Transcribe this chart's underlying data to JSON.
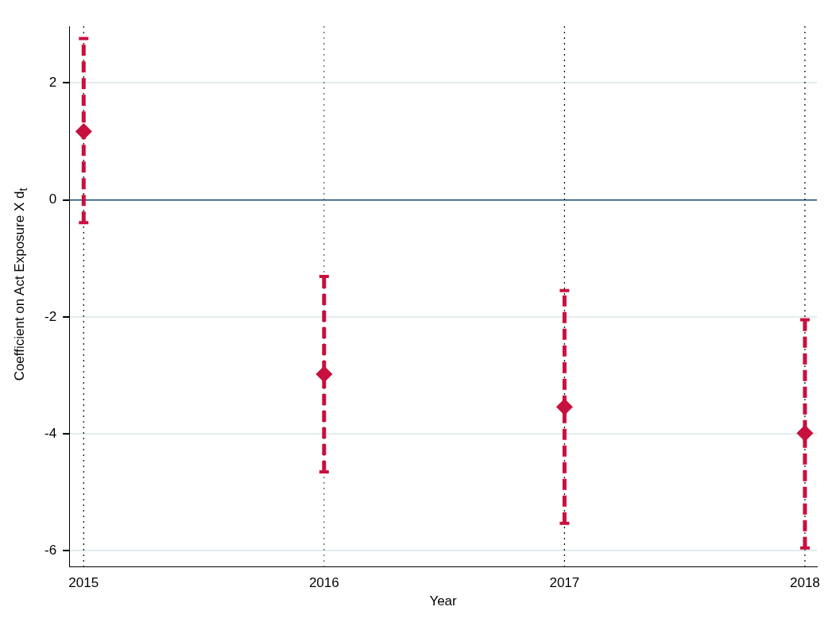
{
  "chart_data": {
    "type": "scatter",
    "xlabel": "Year",
    "ylabel": "Coefficient on Act Exposure X d$_{t}$",
    "x": [
      2015,
      2016,
      2017,
      2018
    ],
    "series": [
      {
        "color": "#c8103e",
        "values": [
          1.17,
          -2.98,
          -3.54,
          -3.99
        ],
        "errors": [
          [
            -0.39,
            2.76
          ],
          [
            -4.65,
            -1.31
          ],
          [
            -5.53,
            -1.55
          ],
          [
            -5.95,
            -2.05
          ]
        ]
      }
    ],
    "xlim": [
      2014.94,
      2018.05
    ],
    "xticks": [
      2015,
      2016,
      2017,
      2018
    ],
    "ylim": [
      -6.27,
      2.97
    ],
    "yticks": [
      -6,
      -4,
      -2,
      0,
      2
    ],
    "grid": "y",
    "legend": false,
    "marker": "diamond",
    "ref_lines": [
      {
        "axis": "y",
        "value": 0,
        "color": "#1a4f7a",
        "line_style": "solid"
      },
      {
        "axis": "x",
        "value": 2015,
        "color": "#000000",
        "line_style": "dotted"
      },
      {
        "axis": "x",
        "value": 2016,
        "color": "#555555",
        "line_style": "dotted"
      },
      {
        "axis": "x",
        "value": 2017,
        "color": "#000000",
        "line_style": "dotted"
      },
      {
        "axis": "x",
        "value": 2018,
        "color": "#000000",
        "line_style": "dotted"
      }
    ]
  }
}
